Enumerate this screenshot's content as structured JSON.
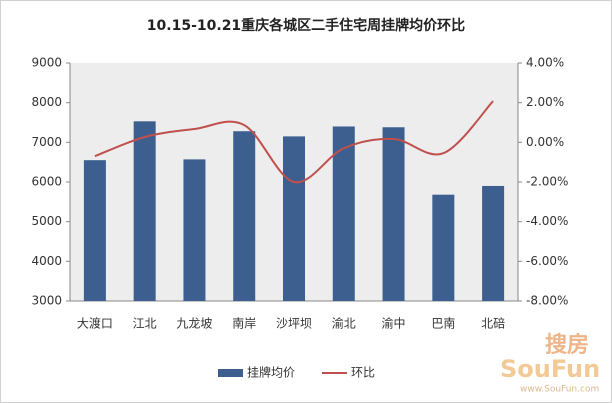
{
  "chart_data": {
    "type": "bar",
    "title": "10.15-10.21重庆各城区二手住宅周挂牌均价环比",
    "categories": [
      "大渡口",
      "江北",
      "九龙坡",
      "南岸",
      "沙坪坝",
      "渝北",
      "渝中",
      "巴南",
      "北碚"
    ],
    "series": [
      {
        "name": "挂牌均价",
        "type": "bar",
        "color": "#3d5f8f",
        "values": [
          6550,
          7530,
          6570,
          7280,
          7150,
          7400,
          7380,
          5680,
          5900
        ]
      },
      {
        "name": "环比",
        "type": "line",
        "axis": "y2",
        "color": "#c0504d",
        "values": [
          -0.7,
          0.27,
          0.67,
          0.87,
          -2.0,
          -0.3,
          0.17,
          -0.55,
          2.08
        ]
      }
    ],
    "ylim": [
      3000,
      9000
    ],
    "yticks": [
      3000,
      4000,
      5000,
      6000,
      7000,
      8000,
      9000
    ],
    "y2lim": [
      -8,
      4
    ],
    "y2ticks": [
      {
        "value": -8,
        "label": "-8.00%"
      },
      {
        "value": -6,
        "label": "-6.00%"
      },
      {
        "value": -4,
        "label": "-4.00%"
      },
      {
        "value": -2,
        "label": "-2.00%"
      },
      {
        "value": 0,
        "label": "0.00%"
      },
      {
        "value": 2,
        "label": "2.00%"
      },
      {
        "value": 4,
        "label": "4.00%"
      }
    ],
    "legend": "bottom",
    "plot_background": "#ededed"
  },
  "watermark": {
    "cn": "搜房",
    "en": "SouFun",
    "url": "www.SouFun.com"
  }
}
